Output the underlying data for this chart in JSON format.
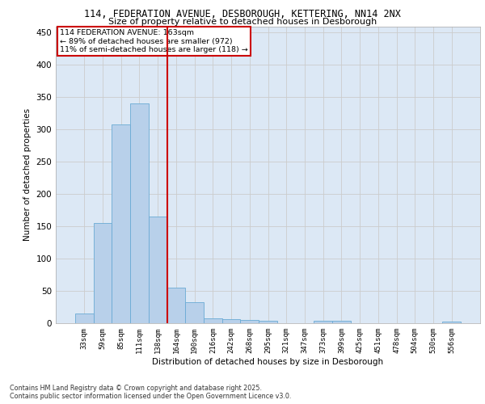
{
  "title_line1": "114, FEDERATION AVENUE, DESBOROUGH, KETTERING, NN14 2NX",
  "title_line2": "Size of property relative to detached houses in Desborough",
  "xlabel": "Distribution of detached houses by size in Desborough",
  "ylabel": "Number of detached properties",
  "categories": [
    "33sqm",
    "59sqm",
    "85sqm",
    "111sqm",
    "138sqm",
    "164sqm",
    "190sqm",
    "216sqm",
    "242sqm",
    "268sqm",
    "295sqm",
    "321sqm",
    "347sqm",
    "373sqm",
    "399sqm",
    "425sqm",
    "451sqm",
    "478sqm",
    "504sqm",
    "530sqm",
    "556sqm"
  ],
  "bar_heights": [
    15,
    155,
    308,
    340,
    165,
    55,
    32,
    8,
    6,
    5,
    4,
    0,
    0,
    4,
    4,
    0,
    0,
    0,
    0,
    0,
    3
  ],
  "bar_color": "#b8d0ea",
  "bar_edge_color": "#6aaad4",
  "vline_pos": 4.5,
  "annotation_box_color": "#cc0000",
  "grid_color": "#cccccc",
  "bg_color": "#dce8f5",
  "ylim": [
    0,
    460
  ],
  "yticks": [
    0,
    50,
    100,
    150,
    200,
    250,
    300,
    350,
    400,
    450
  ],
  "footer_line1": "Contains HM Land Registry data © Crown copyright and database right 2025.",
  "footer_line2": "Contains public sector information licensed under the Open Government Licence v3.0.",
  "annot_line1": "114 FEDERATION AVENUE: 163sqm",
  "annot_line2": "← 89% of detached houses are smaller (972)",
  "annot_line3": "11% of semi-detached houses are larger (118) →"
}
